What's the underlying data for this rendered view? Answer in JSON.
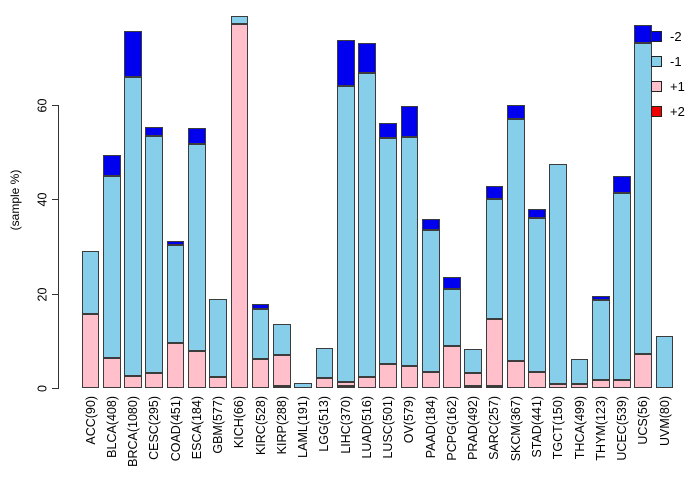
{
  "chart_data": {
    "type": "bar",
    "stacked": true,
    "title": "",
    "ylabel": "(sample %)",
    "xlabel": "",
    "yticks": [
      0,
      20,
      40,
      60
    ],
    "ylim": [
      0,
      80
    ],
    "grid": false,
    "legend_position": "top-right",
    "bar_border_color": "#3c3c3c",
    "categories": [
      "ACC(90)",
      "BLCA(408)",
      "BRCA(1080)",
      "CESC(295)",
      "COAD(451)",
      "ESCA(184)",
      "GBM(577)",
      "KICH(66)",
      "KIRC(528)",
      "KIRP(288)",
      "LAML(191)",
      "LGG(513)",
      "LIHC(370)",
      "LUAD(516)",
      "LUSC(501)",
      "OV(579)",
      "PAAD(184)",
      "PCPG(162)",
      "PRAD(492)",
      "SARC(257)",
      "SKCM(367)",
      "STAD(441)",
      "TGCT(150)",
      "THCA(499)",
      "THYM(123)",
      "UCEC(539)",
      "UCS(56)",
      "UVM(80)"
    ],
    "series": [
      {
        "name": "+2",
        "color": "#ee0000",
        "values": [
          0,
          0,
          0,
          0,
          0,
          0,
          0,
          0,
          0,
          0.5,
          0,
          0,
          0.5,
          0,
          0,
          0,
          0,
          0,
          0.6,
          0.6,
          0,
          0,
          0,
          0,
          0,
          0,
          0,
          0
        ]
      },
      {
        "name": "+1",
        "color": "#ffc0cb",
        "values": [
          15.8,
          6.4,
          2.6,
          3.2,
          9.7,
          7.9,
          2.5,
          77.2,
          6.3,
          6.6,
          0,
          2.3,
          0.9,
          2.4,
          5.2,
          4.8,
          3.6,
          9.0,
          2.6,
          14.1,
          5.8,
          3.4,
          0.9,
          0.9,
          1.8,
          1.7,
          7.3,
          0
        ]
      },
      {
        "name": "-1",
        "color": "#87ceeb",
        "values": [
          13.3,
          38.7,
          63.5,
          50.3,
          20.8,
          43.8,
          16.5,
          1.8,
          10.6,
          6.6,
          1.1,
          6.3,
          62.7,
          64.4,
          47.8,
          48.5,
          30.0,
          12.0,
          5.2,
          25.4,
          51.4,
          32.8,
          46.6,
          5.3,
          17.0,
          39.7,
          66.0,
          11.1
        ]
      },
      {
        "name": "-2",
        "color": "#0000ee",
        "values": [
          0,
          4.4,
          9.7,
          2.0,
          0.8,
          3.4,
          0,
          0,
          0.9,
          0,
          0,
          0,
          9.7,
          6.3,
          3.3,
          6.5,
          2.3,
          2.7,
          0,
          2.8,
          2.8,
          1.8,
          0,
          0,
          0.9,
          3.7,
          3.7,
          0
        ]
      }
    ],
    "legend": [
      {
        "label": "-2",
        "color": "#0000ee"
      },
      {
        "label": "-1",
        "color": "#87ceeb"
      },
      {
        "label": "+1",
        "color": "#ffc0cb"
      },
      {
        "label": "+2",
        "color": "#ee0000"
      }
    ]
  }
}
